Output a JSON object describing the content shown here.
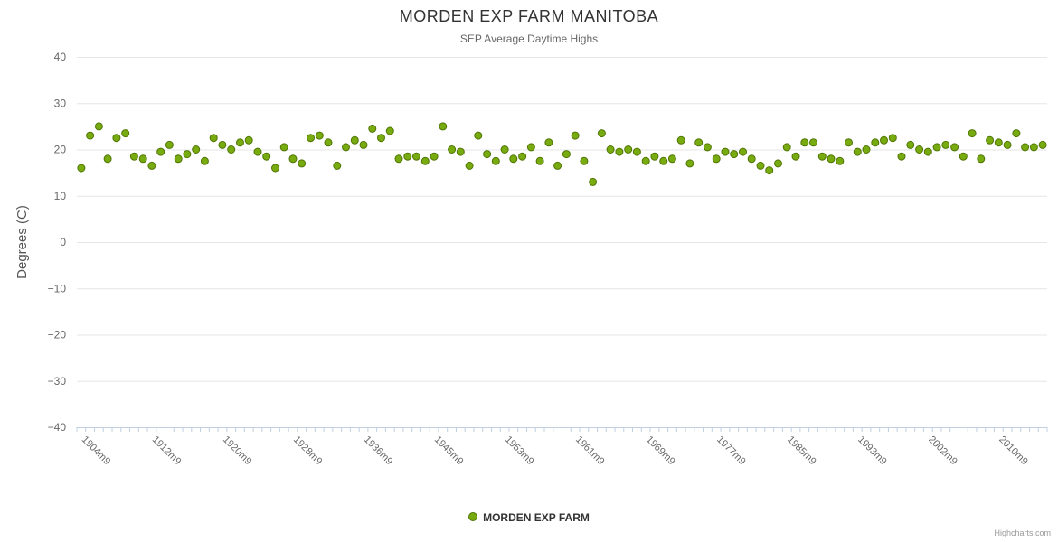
{
  "credits": "Highcharts.com",
  "colors": {
    "marker_fill": "#78ab0f",
    "marker_stroke": "#4f7505",
    "grid": "#e6e6e6",
    "axis_line": "#c0d0e0",
    "tick": "#c0d0e0",
    "axis_label": "#666666"
  },
  "chart_data": {
    "type": "scatter",
    "title": "MORDEN EXP FARM MANITOBA",
    "subtitle": "SEP Average Daytime Highs",
    "xlabel": "",
    "ylabel": "Degrees (C)",
    "ylim": [
      -40,
      40
    ],
    "y_tick_step": 10,
    "y_tick_labels": [
      "40",
      "30",
      "20",
      "10",
      "0",
      "−10",
      "−20",
      "−30",
      "−40"
    ],
    "x_tick_labels": [
      "1904m9",
      "1912m9",
      "1920m9",
      "1928m9",
      "1936m9",
      "1945m9",
      "1953m9",
      "1961m9",
      "1969m9",
      "1977m9",
      "1985m9",
      "1993m9",
      "2002m9",
      "2010m9"
    ],
    "x_suffix": "m9",
    "grid": true,
    "legend_position": "bottom",
    "series": [
      {
        "name": "MORDEN EXP FARM",
        "points": [
          [
            1904,
            16
          ],
          [
            1905,
            23
          ],
          [
            1906,
            25
          ],
          [
            1907,
            18
          ],
          [
            1908,
            22.5
          ],
          [
            1909,
            23.5
          ],
          [
            1910,
            18.5
          ],
          [
            1911,
            18
          ],
          [
            1912,
            16.5
          ],
          [
            1913,
            19.5
          ],
          [
            1914,
            21
          ],
          [
            1915,
            18
          ],
          [
            1916,
            19
          ],
          [
            1917,
            20
          ],
          [
            1918,
            17.5
          ],
          [
            1919,
            22.5
          ],
          [
            1920,
            21
          ],
          [
            1921,
            20
          ],
          [
            1922,
            21.5
          ],
          [
            1923,
            22
          ],
          [
            1924,
            19.5
          ],
          [
            1925,
            18.5
          ],
          [
            1926,
            16
          ],
          [
            1927,
            20.5
          ],
          [
            1928,
            18
          ],
          [
            1929,
            17
          ],
          [
            1930,
            22.5
          ],
          [
            1931,
            23
          ],
          [
            1932,
            21.5
          ],
          [
            1933,
            16.5
          ],
          [
            1934,
            20.5
          ],
          [
            1935,
            22
          ],
          [
            1936,
            21
          ],
          [
            1937,
            24.5
          ],
          [
            1938,
            22.5
          ],
          [
            1939,
            24
          ],
          [
            1941,
            18
          ],
          [
            1942,
            18.5
          ],
          [
            1943,
            18.5
          ],
          [
            1944,
            17.5
          ],
          [
            1945,
            18.5
          ],
          [
            1946,
            25
          ],
          [
            1947,
            20
          ],
          [
            1948,
            19.5
          ],
          [
            1949,
            16.5
          ],
          [
            1950,
            23
          ],
          [
            1951,
            19
          ],
          [
            1952,
            17.5
          ],
          [
            1953,
            20
          ],
          [
            1954,
            18
          ],
          [
            1955,
            18.5
          ],
          [
            1956,
            20.5
          ],
          [
            1957,
            17.5
          ],
          [
            1958,
            21.5
          ],
          [
            1959,
            16.5
          ],
          [
            1960,
            19
          ],
          [
            1961,
            23
          ],
          [
            1962,
            17.5
          ],
          [
            1963,
            13
          ],
          [
            1964,
            23.5
          ],
          [
            1965,
            20
          ],
          [
            1966,
            19.5
          ],
          [
            1967,
            20
          ],
          [
            1968,
            19.5
          ],
          [
            1969,
            17.5
          ],
          [
            1970,
            18.5
          ],
          [
            1971,
            17.5
          ],
          [
            1972,
            18
          ],
          [
            1973,
            22
          ],
          [
            1974,
            17
          ],
          [
            1975,
            21.5
          ],
          [
            1976,
            20.5
          ],
          [
            1977,
            18
          ],
          [
            1978,
            19.5
          ],
          [
            1979,
            19
          ],
          [
            1980,
            19.5
          ],
          [
            1981,
            18
          ],
          [
            1982,
            16.5
          ],
          [
            1983,
            15.5
          ],
          [
            1984,
            17
          ],
          [
            1985,
            20.5
          ],
          [
            1986,
            18.5
          ],
          [
            1987,
            21.5
          ],
          [
            1988,
            21.5
          ],
          [
            1989,
            18.5
          ],
          [
            1990,
            18
          ],
          [
            1991,
            17.5
          ],
          [
            1992,
            21.5
          ],
          [
            1993,
            19.5
          ],
          [
            1994,
            20
          ],
          [
            1996,
            21.5
          ],
          [
            1997,
            22
          ],
          [
            1998,
            22.5
          ],
          [
            1999,
            18.5
          ],
          [
            2000,
            21
          ],
          [
            2001,
            20
          ],
          [
            2002,
            19.5
          ],
          [
            2003,
            20.5
          ],
          [
            2004,
            21
          ],
          [
            2005,
            20.5
          ],
          [
            2006,
            18.5
          ],
          [
            2007,
            23.5
          ],
          [
            2008,
            18
          ],
          [
            2009,
            22
          ],
          [
            2010,
            21.5
          ],
          [
            2011,
            21
          ],
          [
            2012,
            23.5
          ],
          [
            2013,
            20.5
          ],
          [
            2014,
            20.5
          ],
          [
            2015,
            21
          ]
        ]
      }
    ]
  }
}
